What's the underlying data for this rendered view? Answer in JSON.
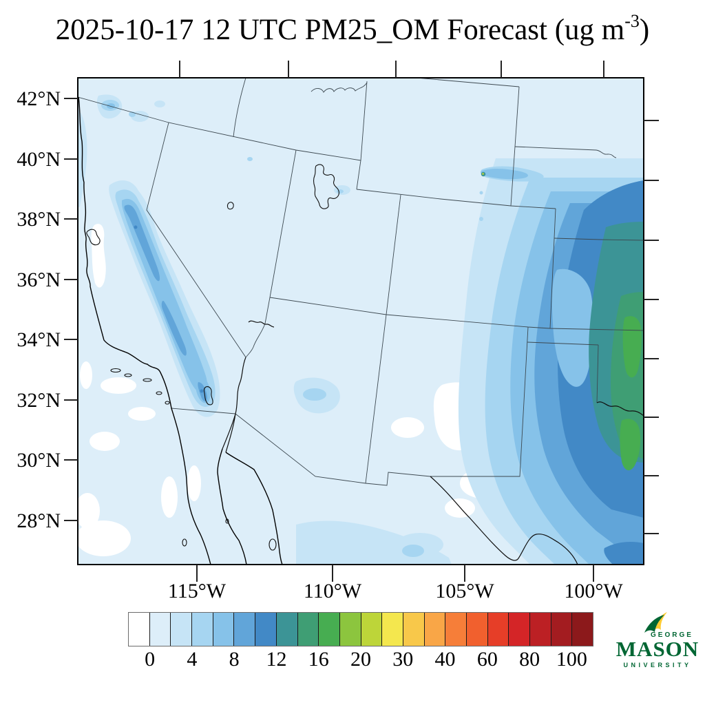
{
  "title": {
    "main": "2025-10-17 12 UTC PM25_OM Forecast (ug m",
    "exponent": "-3",
    "suffix": ")"
  },
  "axes": {
    "lat_labels": [
      "42°N",
      "40°N",
      "38°N",
      "36°N",
      "34°N",
      "32°N",
      "30°N",
      "28°N"
    ],
    "lon_labels": [
      "115°W",
      "110°W",
      "105°W",
      "100°W"
    ]
  },
  "colorbar": {
    "labels": [
      "0",
      "4",
      "8",
      "12",
      "16",
      "20",
      "30",
      "40",
      "60",
      "80",
      "100"
    ],
    "breakpoints": [
      0,
      2,
      4,
      6,
      8,
      10,
      12,
      14,
      16,
      18,
      20,
      25,
      30,
      35,
      40,
      50,
      60,
      70,
      80,
      90,
      100
    ],
    "colors": [
      "#ffffff",
      "#ddeef9",
      "#c6e4f6",
      "#a6d5f1",
      "#86c2e9",
      "#61a5d9",
      "#4289c6",
      "#3c9496",
      "#3f9e74",
      "#47ad51",
      "#8cc53e",
      "#bdd539",
      "#f4e74e",
      "#f8c84a",
      "#f9a647",
      "#f67e39",
      "#f1602e",
      "#e63e28",
      "#d42527",
      "#bc2024",
      "#a31c20",
      "#8c191b"
    ]
  },
  "chart_data": {
    "type": "heatmap",
    "variable": "PM25_OM",
    "units": "ug m-3",
    "valid_time": "2025-10-17 12 UTC",
    "region": "Southwestern United States and northern Mexico",
    "lat_range": [
      27,
      43
    ],
    "lon_range": [
      -124,
      -98
    ],
    "scale_breakpoints": [
      0,
      2,
      4,
      6,
      8,
      10,
      12,
      14,
      16,
      18,
      20,
      25,
      30,
      35,
      40,
      50,
      60,
      70,
      80,
      90,
      100
    ],
    "notes": "Low values (0-4) over most of domain; 4-10 plume along Sierra Nevada in California; 8-20 maximum with green core (16-18) over Oklahoma/Kansas/Texas at east edge; small point source (~16 with yellow core) in southeast Wyoming"
  },
  "logo": {
    "george": "GEORGE",
    "mason": "MASON",
    "university": "UNIVERSITY",
    "green": "#006633",
    "gold": "#ffcc33"
  }
}
